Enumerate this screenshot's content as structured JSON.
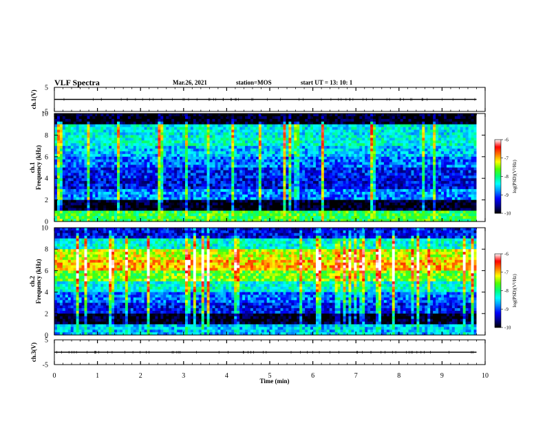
{
  "header": {
    "title": "VLF Spectra",
    "date": "Mar.26, 2021",
    "station": "station=MOS",
    "start": "start  UT  =   13: 10: 1"
  },
  "colors": {
    "background": "#ffffff",
    "axis": "#000000",
    "spectrum_floor": "#000000",
    "spectrum_low": "#0000ff",
    "spectrum_mid": "#00ffff",
    "spectrum_green": "#00ff00",
    "spectrum_yellow": "#ffff00",
    "spectrum_high": "#ff0000",
    "colorbar_top": "#ffffff"
  },
  "chart_data": [
    {
      "type": "line",
      "name": "ch1-waveform",
      "ylabel": "ch.1(V)",
      "ylim": [
        -5,
        5
      ],
      "yticks": [
        "5",
        "-5"
      ],
      "xlim": [
        0,
        10
      ],
      "trace_level": 0
    },
    {
      "type": "heatmap",
      "name": "ch1-spectrogram",
      "ylabel": "ch.1\nFrequency (kHz)",
      "ylim": [
        0,
        10
      ],
      "yticks": [
        "0",
        "2",
        "4",
        "6",
        "8",
        "10"
      ],
      "xlim": [
        0,
        10
      ],
      "data_end_min": 9.8,
      "z_label": "log(PSD)(V²/Hz)",
      "zlim": [
        -10,
        -6
      ],
      "zticks": [
        "-6",
        "-7",
        "-8",
        "-9",
        "-10"
      ],
      "band_level_log_psd": [
        {
          "f_khz": 0.5,
          "log_psd": -7.8
        },
        {
          "f_khz": 1.5,
          "log_psd": -10
        },
        {
          "f_khz": 2.5,
          "log_psd": -8.8
        },
        {
          "f_khz": 3.5,
          "log_psd": -9.3
        },
        {
          "f_khz": 4.5,
          "log_psd": -9.2
        },
        {
          "f_khz": 5.5,
          "log_psd": -8.9
        },
        {
          "f_khz": 6.5,
          "log_psd": -8.6
        },
        {
          "f_khz": 7.5,
          "log_psd": -8.3
        },
        {
          "f_khz": 8.5,
          "log_psd": -8.4
        },
        {
          "f_khz": 9.5,
          "log_psd": -10
        }
      ]
    },
    {
      "type": "heatmap",
      "name": "ch2-spectrogram",
      "ylabel": "ch.2\nFrequency (kHz)",
      "ylim": [
        0,
        10
      ],
      "yticks": [
        "0",
        "2",
        "4",
        "6",
        "8",
        "10"
      ],
      "xlim": [
        0,
        10
      ],
      "data_end_min": 9.8,
      "z_label": "log(PSD)(V²/Hz)",
      "zlim": [
        -10,
        -6
      ],
      "zticks": [
        "-6",
        "-7",
        "-8",
        "-9",
        "-10"
      ],
      "band_level_log_psd": [
        {
          "f_khz": 0.5,
          "log_psd": -8.6
        },
        {
          "f_khz": 1.5,
          "log_psd": -10
        },
        {
          "f_khz": 2.5,
          "log_psd": -9.2
        },
        {
          "f_khz": 3.5,
          "log_psd": -8.9
        },
        {
          "f_khz": 4.5,
          "log_psd": -8.3
        },
        {
          "f_khz": 5.5,
          "log_psd": -7.6
        },
        {
          "f_khz": 6.5,
          "log_psd": -7.0
        },
        {
          "f_khz": 7.5,
          "log_psd": -7.3
        },
        {
          "f_khz": 8.5,
          "log_psd": -8.3
        },
        {
          "f_khz": 9.5,
          "log_psd": -9.3
        }
      ]
    },
    {
      "type": "line",
      "name": "ch3-waveform",
      "ylabel": "ch.3(V)",
      "ylim": [
        -5,
        5
      ],
      "yticks": [
        "5",
        "-5"
      ],
      "xlim": [
        0,
        10
      ],
      "trace_level": 0
    }
  ],
  "x_axis": {
    "label": "Time  (min)",
    "ticks": [
      "0",
      "1",
      "2",
      "3",
      "4",
      "5",
      "6",
      "7",
      "8",
      "9",
      "10"
    ]
  }
}
